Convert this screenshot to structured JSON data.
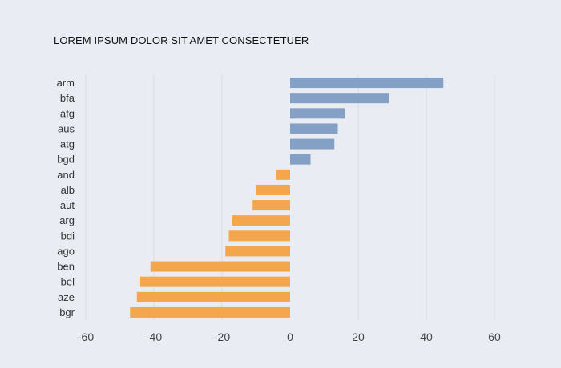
{
  "chart_data": {
    "type": "bar",
    "orientation": "horizontal",
    "title": "LOREM IPSUM DOLOR SIT AMET CONSECTETUER",
    "xlabel": "",
    "ylabel": "",
    "categories": [
      "arm",
      "bfa",
      "afg",
      "aus",
      "atg",
      "bgd",
      "and",
      "alb",
      "aut",
      "arg",
      "bdi",
      "ago",
      "ben",
      "bel",
      "aze",
      "bgr"
    ],
    "values": [
      45,
      29,
      16,
      14,
      13,
      6,
      -4,
      -10,
      -11,
      -17,
      -18,
      -19,
      -41,
      -44,
      -45,
      -47
    ],
    "xlim": [
      -60,
      60
    ],
    "xticks": [
      -60,
      -40,
      -20,
      0,
      20,
      40,
      60
    ],
    "grid": true,
    "colors": {
      "positive": "#84a1c5",
      "negative": "#f3a64b"
    }
  }
}
